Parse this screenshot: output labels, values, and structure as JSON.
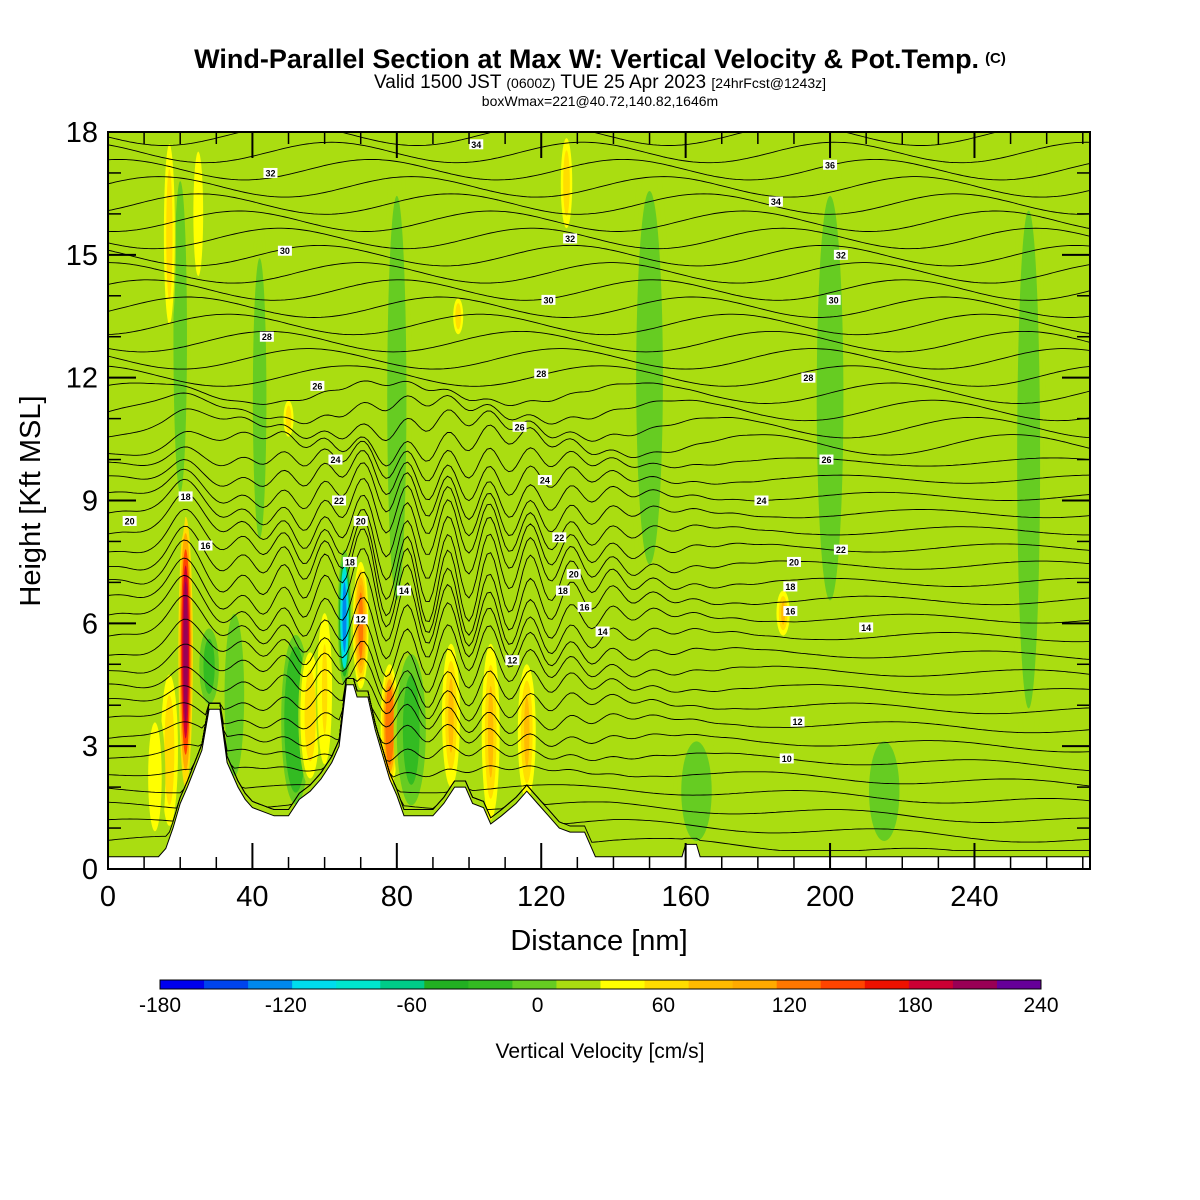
{
  "header": {
    "title": "Wind-Parallel Section at Max W: Vertical Velocity & Pot.Temp.",
    "copyright": "(C)",
    "valid_prefix": "Valid 1500 JST",
    "valid_utc": "(0600Z)",
    "valid_date": "TUE 25 Apr 2023",
    "forecast": "[24hrFcst@1243z]",
    "box_info": "boxWmax=221@40.72,140.82,1646m"
  },
  "chart_data": {
    "type": "heatmap",
    "xlabel": "Distance [nm]",
    "ylabel": "Height [Kft MSL]",
    "xlim": [
      0,
      272
    ],
    "ylim": [
      0,
      18
    ],
    "x_ticks": [
      0,
      40,
      80,
      120,
      160,
      200,
      240
    ],
    "y_ticks": [
      0,
      3,
      6,
      9,
      12,
      15,
      18
    ],
    "colorbar": {
      "label": "Vertical Velocity [cm/s]",
      "min": -180,
      "max": 240,
      "step": 20,
      "tick_labels": [
        -180,
        -120,
        -60,
        0,
        60,
        120,
        180,
        240
      ],
      "colors": [
        "#0000ee",
        "#0044ee",
        "#0088ee",
        "#00ddee",
        "#00e6d0",
        "#00cc88",
        "#22b022",
        "#33bb22",
        "#66cc22",
        "#aadd11",
        "#ffff00",
        "#ffdd00",
        "#ffbb00",
        "#ffaa00",
        "#ff7700",
        "#ff4400",
        "#ee1100",
        "#cc0033",
        "#990055",
        "#660099"
      ]
    },
    "background_velocity": 10,
    "terrain_kft": [
      [
        0,
        0.3
      ],
      [
        14,
        0.3
      ],
      [
        16,
        0.5
      ],
      [
        18,
        1.0
      ],
      [
        20,
        1.6
      ],
      [
        22,
        2.0
      ],
      [
        26,
        2.9
      ],
      [
        28,
        3.9
      ],
      [
        31,
        3.9
      ],
      [
        33,
        2.6
      ],
      [
        36,
        2.0
      ],
      [
        38,
        1.7
      ],
      [
        40,
        1.5
      ],
      [
        43,
        1.4
      ],
      [
        46,
        1.3
      ],
      [
        50,
        1.3
      ],
      [
        53,
        1.7
      ],
      [
        56,
        1.9
      ],
      [
        59,
        2.2
      ],
      [
        62,
        2.6
      ],
      [
        64,
        3.0
      ],
      [
        66,
        4.5
      ],
      [
        68,
        4.5
      ],
      [
        69,
        4.2
      ],
      [
        72,
        4.2
      ],
      [
        74,
        3.4
      ],
      [
        76,
        2.8
      ],
      [
        78,
        2.2
      ],
      [
        80,
        1.8
      ],
      [
        82,
        1.3
      ],
      [
        86,
        1.3
      ],
      [
        90,
        1.3
      ],
      [
        93,
        1.6
      ],
      [
        96,
        2.0
      ],
      [
        99,
        2.0
      ],
      [
        101,
        1.6
      ],
      [
        104,
        1.5
      ],
      [
        106,
        1.1
      ],
      [
        109,
        1.3
      ],
      [
        113,
        1.6
      ],
      [
        116,
        1.9
      ],
      [
        119,
        1.6
      ],
      [
        122,
        1.3
      ],
      [
        125,
        1.0
      ],
      [
        128,
        0.9
      ],
      [
        132,
        0.9
      ],
      [
        135,
        0.3
      ],
      [
        159,
        0.3
      ],
      [
        160,
        0.6
      ],
      [
        163,
        0.6
      ],
      [
        164,
        0.3
      ],
      [
        272,
        0.3
      ]
    ],
    "updrafts": [
      {
        "x": 21.5,
        "w": 1.4,
        "z_low": 2.0,
        "z_high": 8.6,
        "value": 190
      },
      {
        "x": 17,
        "w": 2.5,
        "z_low": 0.8,
        "z_high": 5.0,
        "value": 50
      },
      {
        "x": 13,
        "w": 2.5,
        "z_low": 0.5,
        "z_high": 4.0,
        "value": 25
      },
      {
        "x": 28,
        "w": 3.0,
        "z_low": 3.9,
        "z_high": 6.0,
        "value": -30
      },
      {
        "x": 35,
        "w": 3.0,
        "z_low": 2.0,
        "z_high": 6.5,
        "value": -20
      },
      {
        "x": 52,
        "w": 5.0,
        "z_low": 1.3,
        "z_high": 6.0,
        "value": -40
      },
      {
        "x": 56,
        "w": 3.0,
        "z_low": 2.0,
        "z_high": 5.5,
        "value": 50
      },
      {
        "x": 60,
        "w": 2.0,
        "z_low": 2.3,
        "z_high": 6.5,
        "value": 40
      },
      {
        "x": 65.5,
        "w": 1.2,
        "z_low": 4.5,
        "z_high": 7.8,
        "value": -130
      },
      {
        "x": 70,
        "w": 1.6,
        "z_low": 4.4,
        "z_high": 7.5,
        "value": 100
      },
      {
        "x": 78,
        "w": 2.0,
        "z_low": 2.0,
        "z_high": 5.0,
        "value": 110
      },
      {
        "x": 84,
        "w": 5.0,
        "z_low": 1.3,
        "z_high": 5.5,
        "value": -30
      },
      {
        "x": 95,
        "w": 2.0,
        "z_low": 2.0,
        "z_high": 5.5,
        "value": 60
      },
      {
        "x": 106,
        "w": 2.0,
        "z_low": 1.2,
        "z_high": 5.5,
        "value": 60
      },
      {
        "x": 116,
        "w": 2.0,
        "z_low": 1.7,
        "z_high": 5.0,
        "value": 60
      },
      {
        "x": 187,
        "w": 1.2,
        "z_low": 5.7,
        "z_high": 6.8,
        "value": 60
      },
      {
        "x": 20,
        "w": 2.5,
        "z_low": 8.0,
        "z_high": 18.0,
        "value": -10
      },
      {
        "x": 42,
        "w": 2.5,
        "z_low": 7.0,
        "z_high": 16.0,
        "value": -10
      },
      {
        "x": 80,
        "w": 4.0,
        "z_low": 5.0,
        "z_high": 18.0,
        "value": -10
      },
      {
        "x": 150,
        "w": 6.0,
        "z_low": 6.0,
        "z_high": 18.0,
        "value": -10
      },
      {
        "x": 200,
        "w": 6.0,
        "z_low": 5.0,
        "z_high": 18.0,
        "value": -10
      },
      {
        "x": 255,
        "w": 5.0,
        "z_low": 2.0,
        "z_high": 18.0,
        "value": -10
      },
      {
        "x": 163,
        "w": 7.0,
        "z_low": 0.3,
        "z_high": 3.5,
        "value": -10
      },
      {
        "x": 215,
        "w": 7.0,
        "z_low": 0.3,
        "z_high": 3.5,
        "value": -10
      },
      {
        "x": 17,
        "w": 1.2,
        "z_low": 13.0,
        "z_high": 18.0,
        "value": 45
      },
      {
        "x": 50,
        "w": 1.0,
        "z_low": 10.5,
        "z_high": 11.5,
        "value": 45
      },
      {
        "x": 97,
        "w": 1.0,
        "z_low": 13.0,
        "z_high": 14.0,
        "value": 45
      },
      {
        "x": 127,
        "w": 1.3,
        "z_low": 15.5,
        "z_high": 18.0,
        "value": 45
      },
      {
        "x": 25,
        "w": 1.5,
        "z_low": 14.0,
        "z_high": 18.0,
        "value": 30
      }
    ],
    "isentrope_labels": [
      {
        "x": 6,
        "z": 8.5,
        "text": "20"
      },
      {
        "x": 21.5,
        "z": 9.1,
        "text": "18"
      },
      {
        "x": 27,
        "z": 7.9,
        "text": "16"
      },
      {
        "x": 45,
        "z": 17.0,
        "text": "32"
      },
      {
        "x": 49,
        "z": 15.1,
        "text": "30"
      },
      {
        "x": 44,
        "z": 13.0,
        "text": "28"
      },
      {
        "x": 58,
        "z": 11.8,
        "text": "26"
      },
      {
        "x": 63,
        "z": 10.0,
        "text": "24"
      },
      {
        "x": 64,
        "z": 9.0,
        "text": "22"
      },
      {
        "x": 70,
        "z": 8.5,
        "text": "20"
      },
      {
        "x": 67,
        "z": 7.5,
        "text": "18"
      },
      {
        "x": 82,
        "z": 6.8,
        "text": "14"
      },
      {
        "x": 70,
        "z": 6.1,
        "text": "12"
      },
      {
        "x": 102,
        "z": 17.7,
        "text": "34"
      },
      {
        "x": 128,
        "z": 15.4,
        "text": "32"
      },
      {
        "x": 122,
        "z": 13.9,
        "text": "30"
      },
      {
        "x": 120,
        "z": 12.1,
        "text": "28"
      },
      {
        "x": 114,
        "z": 10.8,
        "text": "26"
      },
      {
        "x": 121,
        "z": 9.5,
        "text": "24"
      },
      {
        "x": 125,
        "z": 8.1,
        "text": "22"
      },
      {
        "x": 129,
        "z": 7.2,
        "text": "20"
      },
      {
        "x": 126,
        "z": 6.8,
        "text": "18"
      },
      {
        "x": 132,
        "z": 6.4,
        "text": "16"
      },
      {
        "x": 137,
        "z": 5.8,
        "text": "14"
      },
      {
        "x": 112,
        "z": 5.1,
        "text": "12"
      },
      {
        "x": 200,
        "z": 17.2,
        "text": "36"
      },
      {
        "x": 185,
        "z": 16.3,
        "text": "34"
      },
      {
        "x": 203,
        "z": 15.0,
        "text": "32"
      },
      {
        "x": 201,
        "z": 13.9,
        "text": "30"
      },
      {
        "x": 194,
        "z": 12.0,
        "text": "28"
      },
      {
        "x": 199,
        "z": 10.0,
        "text": "26"
      },
      {
        "x": 181,
        "z": 9.0,
        "text": "24"
      },
      {
        "x": 203,
        "z": 7.8,
        "text": "22"
      },
      {
        "x": 190,
        "z": 7.5,
        "text": "20"
      },
      {
        "x": 189,
        "z": 6.9,
        "text": "18"
      },
      {
        "x": 189,
        "z": 6.3,
        "text": "16"
      },
      {
        "x": 210,
        "z": 5.9,
        "text": "14"
      },
      {
        "x": 191,
        "z": 3.6,
        "text": "12"
      },
      {
        "x": 188,
        "z": 2.7,
        "text": "10"
      }
    ]
  }
}
